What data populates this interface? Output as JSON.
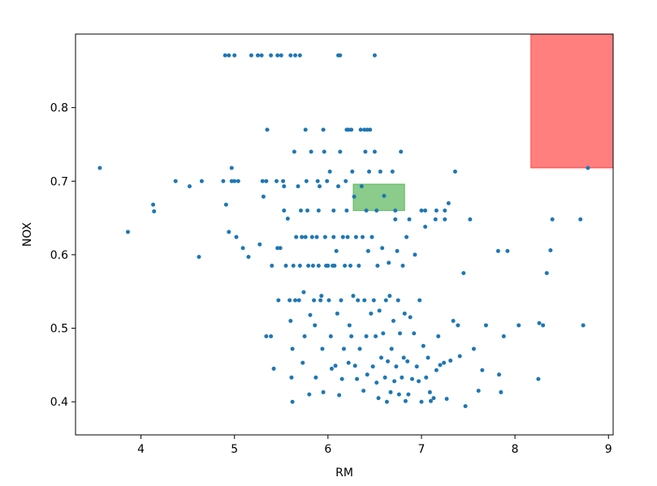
{
  "chart_data": {
    "type": "scatter",
    "title": "",
    "xlabel": "RM",
    "ylabel": "NOX",
    "xlim": [
      3.3,
      9.05
    ],
    "ylim": [
      0.355,
      0.9
    ],
    "xticks": [
      4,
      5,
      6,
      7,
      8,
      9
    ],
    "yticks": [
      0.4,
      0.5,
      0.6,
      0.7,
      0.8
    ],
    "xtick_labels": [
      "4",
      "5",
      "6",
      "7",
      "8",
      "9"
    ],
    "ytick_labels": [
      "0.4",
      "0.5",
      "0.6",
      "0.7",
      "0.8"
    ],
    "grid": false,
    "point_color": "#1f77b4",
    "highlight_regions": [
      {
        "x": [
          8.17,
          9.05
        ],
        "y": [
          0.718,
          0.9
        ],
        "color": "#ff0000",
        "opacity": 0.5
      },
      {
        "x": [
          6.27,
          6.82
        ],
        "y": [
          0.66,
          0.696
        ],
        "color": "#2ca02c",
        "opacity": 0.55
      }
    ],
    "points": [
      [
        3.56,
        0.718
      ],
      [
        3.86,
        0.631
      ],
      [
        4.13,
        0.668
      ],
      [
        4.14,
        0.659
      ],
      [
        4.37,
        0.7
      ],
      [
        4.52,
        0.693
      ],
      [
        4.62,
        0.597
      ],
      [
        4.65,
        0.7
      ],
      [
        4.88,
        0.7
      ],
      [
        4.91,
        0.668
      ],
      [
        4.94,
        0.631
      ],
      [
        4.97,
        0.718
      ],
      [
        4.97,
        0.7
      ],
      [
        5.0,
        0.7
      ],
      [
        5.02,
        0.624
      ],
      [
        5.04,
        0.7
      ],
      [
        5.09,
        0.609
      ],
      [
        5.15,
        0.597
      ],
      [
        5.27,
        0.614
      ],
      [
        5.3,
        0.7
      ],
      [
        5.31,
        0.679
      ],
      [
        5.34,
        0.7
      ],
      [
        5.34,
        0.489
      ],
      [
        5.39,
        0.489
      ],
      [
        5.4,
        0.585
      ],
      [
        5.42,
        0.445
      ],
      [
        5.45,
        0.7
      ],
      [
        5.46,
        0.609
      ],
      [
        5.47,
        0.538
      ],
      [
        5.49,
        0.609
      ],
      [
        5.52,
        0.7
      ],
      [
        5.53,
        0.693
      ],
      [
        5.55,
        0.585
      ],
      [
        5.57,
        0.649
      ],
      [
        5.59,
        0.538
      ],
      [
        5.6,
        0.51
      ],
      [
        5.61,
        0.433
      ],
      [
        5.62,
        0.472
      ],
      [
        5.62,
        0.4
      ],
      [
        5.63,
        0.585
      ],
      [
        5.64,
        0.74
      ],
      [
        5.65,
        0.538
      ],
      [
        5.66,
        0.624
      ],
      [
        5.68,
        0.693
      ],
      [
        5.69,
        0.538
      ],
      [
        5.7,
        0.585
      ],
      [
        5.72,
        0.624
      ],
      [
        5.73,
        0.453
      ],
      [
        5.74,
        0.549
      ],
      [
        5.75,
        0.489
      ],
      [
        5.76,
        0.624
      ],
      [
        5.77,
        0.7
      ],
      [
        5.78,
        0.66
      ],
      [
        5.79,
        0.585
      ],
      [
        5.8,
        0.41
      ],
      [
        5.81,
        0.518
      ],
      [
        5.82,
        0.74
      ],
      [
        5.83,
        0.624
      ],
      [
        5.84,
        0.585
      ],
      [
        5.85,
        0.538
      ],
      [
        5.86,
        0.504
      ],
      [
        5.87,
        0.433
      ],
      [
        5.88,
        0.624
      ],
      [
        5.89,
        0.7
      ],
      [
        5.9,
        0.585
      ],
      [
        5.91,
        0.693
      ],
      [
        5.92,
        0.538
      ],
      [
        5.93,
        0.544
      ],
      [
        5.94,
        0.472
      ],
      [
        5.95,
        0.413
      ],
      [
        5.96,
        0.74
      ],
      [
        5.97,
        0.624
      ],
      [
        5.98,
        0.585
      ],
      [
        5.99,
        0.7
      ],
      [
        6.0,
        0.585
      ],
      [
        6.01,
        0.538
      ],
      [
        6.02,
        0.713
      ],
      [
        6.03,
        0.489
      ],
      [
        6.04,
        0.445
      ],
      [
        6.05,
        0.585
      ],
      [
        6.06,
        0.624
      ],
      [
        6.07,
        0.585
      ],
      [
        6.08,
        0.449
      ],
      [
        6.09,
        0.605
      ],
      [
        6.1,
        0.52
      ],
      [
        6.11,
        0.693
      ],
      [
        6.12,
        0.409
      ],
      [
        6.13,
        0.74
      ],
      [
        6.14,
        0.538
      ],
      [
        6.15,
        0.431
      ],
      [
        6.16,
        0.624
      ],
      [
        6.17,
        0.472
      ],
      [
        6.18,
        0.585
      ],
      [
        6.19,
        0.7
      ],
      [
        6.2,
        0.77
      ],
      [
        6.21,
        0.624
      ],
      [
        6.22,
        0.453
      ],
      [
        6.23,
        0.504
      ],
      [
        6.24,
        0.585
      ],
      [
        6.25,
        0.489
      ],
      [
        6.26,
        0.713
      ],
      [
        6.27,
        0.544
      ],
      [
        6.28,
        0.679
      ],
      [
        6.29,
        0.449
      ],
      [
        6.3,
        0.624
      ],
      [
        6.31,
        0.431
      ],
      [
        6.32,
        0.538
      ],
      [
        6.33,
        0.585
      ],
      [
        6.34,
        0.472
      ],
      [
        6.35,
        0.77
      ],
      [
        6.36,
        0.693
      ],
      [
        6.37,
        0.624
      ],
      [
        6.38,
        0.415
      ],
      [
        6.39,
        0.538
      ],
      [
        6.4,
        0.74
      ],
      [
        6.41,
        0.489
      ],
      [
        6.42,
        0.437
      ],
      [
        6.43,
        0.605
      ],
      [
        6.44,
        0.713
      ],
      [
        6.45,
        0.77
      ],
      [
        6.46,
        0.52
      ],
      [
        6.47,
        0.624
      ],
      [
        6.48,
        0.448
      ],
      [
        6.49,
        0.538
      ],
      [
        6.5,
        0.74
      ],
      [
        6.51,
        0.489
      ],
      [
        6.52,
        0.426
      ],
      [
        6.53,
        0.585
      ],
      [
        6.54,
        0.405
      ],
      [
        6.55,
        0.524
      ],
      [
        6.56,
        0.713
      ],
      [
        6.57,
        0.46
      ],
      [
        6.58,
        0.609
      ],
      [
        6.59,
        0.493
      ],
      [
        6.6,
        0.68
      ],
      [
        6.61,
        0.433
      ],
      [
        6.62,
        0.538
      ],
      [
        6.63,
        0.4
      ],
      [
        6.64,
        0.455
      ],
      [
        6.65,
        0.589
      ],
      [
        6.66,
        0.544
      ],
      [
        6.67,
        0.413
      ],
      [
        6.68,
        0.472
      ],
      [
        6.69,
        0.713
      ],
      [
        6.7,
        0.51
      ],
      [
        6.71,
        0.428
      ],
      [
        6.72,
        0.648
      ],
      [
        6.73,
        0.448
      ],
      [
        6.74,
        0.605
      ],
      [
        6.75,
        0.538
      ],
      [
        6.76,
        0.41
      ],
      [
        6.77,
        0.493
      ],
      [
        6.78,
        0.74
      ],
      [
        6.79,
        0.433
      ],
      [
        6.8,
        0.585
      ],
      [
        6.81,
        0.46
      ],
      [
        6.82,
        0.52
      ],
      [
        6.83,
        0.401
      ],
      [
        6.84,
        0.624
      ],
      [
        6.85,
        0.455
      ],
      [
        6.86,
        0.41
      ],
      [
        6.87,
        0.648
      ],
      [
        6.88,
        0.515
      ],
      [
        6.9,
        0.431
      ],
      [
        6.92,
        0.493
      ],
      [
        6.93,
        0.6
      ],
      [
        6.95,
        0.448
      ],
      [
        6.97,
        0.428
      ],
      [
        6.98,
        0.538
      ],
      [
        7.0,
        0.4
      ],
      [
        7.02,
        0.476
      ],
      [
        7.04,
        0.638
      ],
      [
        7.05,
        0.433
      ],
      [
        7.07,
        0.46
      ],
      [
        7.09,
        0.413
      ],
      [
        7.1,
        0.401
      ],
      [
        7.13,
        0.405
      ],
      [
        7.15,
        0.648
      ],
      [
        7.16,
        0.443
      ],
      [
        7.18,
        0.489
      ],
      [
        7.2,
        0.45
      ],
      [
        7.24,
        0.453
      ],
      [
        7.25,
        0.648
      ],
      [
        7.27,
        0.404
      ],
      [
        7.29,
        0.67
      ],
      [
        7.31,
        0.456
      ],
      [
        7.34,
        0.51
      ],
      [
        7.36,
        0.713
      ],
      [
        7.39,
        0.504
      ],
      [
        7.41,
        0.462
      ],
      [
        7.45,
        0.575
      ],
      [
        7.47,
        0.394
      ],
      [
        7.52,
        0.648
      ],
      [
        7.56,
        0.472
      ],
      [
        7.61,
        0.415
      ],
      [
        7.65,
        0.443
      ],
      [
        7.69,
        0.504
      ],
      [
        7.82,
        0.605
      ],
      [
        7.83,
        0.437
      ],
      [
        7.85,
        0.413
      ],
      [
        7.88,
        0.489
      ],
      [
        7.92,
        0.605
      ],
      [
        8.04,
        0.504
      ],
      [
        8.25,
        0.431
      ],
      [
        8.26,
        0.507
      ],
      [
        8.3,
        0.504
      ],
      [
        8.34,
        0.575
      ],
      [
        8.38,
        0.606
      ],
      [
        8.4,
        0.648
      ],
      [
        8.7,
        0.648
      ],
      [
        8.73,
        0.504
      ],
      [
        8.78,
        0.718
      ],
      [
        4.9,
        0.871
      ],
      [
        4.94,
        0.871
      ],
      [
        5.0,
        0.871
      ],
      [
        5.18,
        0.871
      ],
      [
        5.25,
        0.871
      ],
      [
        5.29,
        0.871
      ],
      [
        5.39,
        0.871
      ],
      [
        5.46,
        0.871
      ],
      [
        5.5,
        0.871
      ],
      [
        5.6,
        0.871
      ],
      [
        5.65,
        0.871
      ],
      [
        5.7,
        0.871
      ],
      [
        6.11,
        0.871
      ],
      [
        6.13,
        0.871
      ],
      [
        6.5,
        0.871
      ],
      [
        5.35,
        0.77
      ],
      [
        5.76,
        0.77
      ],
      [
        5.95,
        0.77
      ],
      [
        6.22,
        0.77
      ],
      [
        6.25,
        0.77
      ],
      [
        6.39,
        0.77
      ],
      [
        6.42,
        0.77
      ],
      [
        5.53,
        0.66
      ],
      [
        5.71,
        0.66
      ],
      [
        5.9,
        0.66
      ],
      [
        6.06,
        0.66
      ],
      [
        6.2,
        0.66
      ],
      [
        6.41,
        0.66
      ],
      [
        6.52,
        0.66
      ],
      [
        6.72,
        0.66
      ],
      [
        7.0,
        0.66
      ],
      [
        7.04,
        0.66
      ],
      [
        7.16,
        0.66
      ],
      [
        7.25,
        0.66
      ]
    ]
  }
}
